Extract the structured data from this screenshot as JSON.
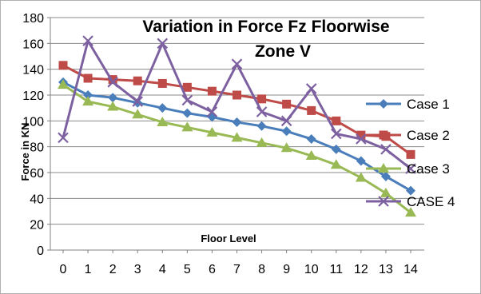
{
  "chart_data": {
    "type": "line",
    "title_line1": "Variation in Force Fz Floorwise",
    "title_line2": "Zone V",
    "xlabel": "Floor Level",
    "ylabel": "Force in KN",
    "x": [
      0,
      1,
      2,
      3,
      4,
      5,
      6,
      7,
      8,
      9,
      10,
      11,
      12,
      13,
      14
    ],
    "ylim": [
      0,
      180
    ],
    "yticks": [
      0,
      20,
      40,
      60,
      80,
      100,
      120,
      140,
      160,
      180
    ],
    "grid": true,
    "legend_position": "right",
    "series": [
      {
        "name": "Case 1",
        "color": "#4a7ebb",
        "marker": "diamond",
        "values": [
          130,
          120,
          118,
          114,
          110,
          106,
          103,
          99,
          96,
          92,
          86,
          78,
          69,
          57,
          46
        ]
      },
      {
        "name": "Case 2",
        "color": "#be4b48",
        "marker": "square",
        "values": [
          143,
          133,
          132,
          131,
          129,
          126,
          123,
          120,
          117,
          113,
          108,
          100,
          89,
          88,
          74
        ]
      },
      {
        "name": "Case 3",
        "color": "#98b954",
        "marker": "triangle",
        "values": [
          128,
          115,
          111,
          105,
          99,
          95,
          91,
          87,
          83,
          79,
          73,
          66,
          56,
          44,
          29
        ]
      },
      {
        "name": "CASE 4",
        "color": "#7d60a0",
        "marker": "x",
        "values": [
          87,
          162,
          130,
          115,
          160,
          116,
          107,
          144,
          107,
          100,
          125,
          90,
          86,
          78,
          63
        ]
      }
    ]
  }
}
